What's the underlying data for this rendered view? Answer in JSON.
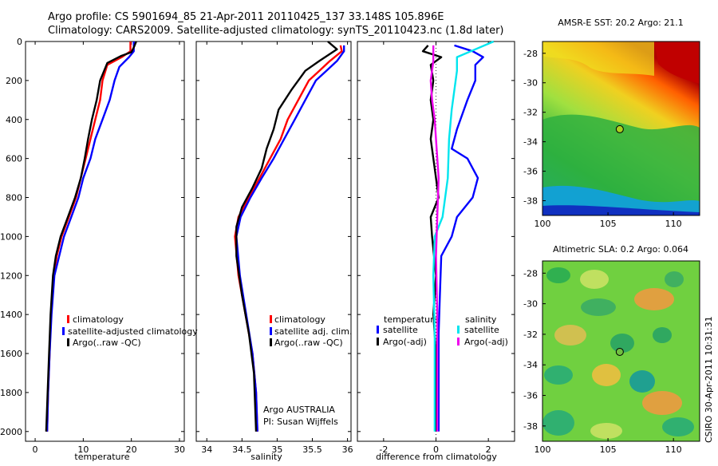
{
  "header": {
    "line1": "Argo profile: CS 5901694_85 21-Apr-2011 20110425_137 33.148S 105.896E",
    "line2": "Climatology: CARS2009. Satellite-adjusted climatology: synTS_20110423.nc (1.8d later)"
  },
  "colors": {
    "climatology": "#ff0000",
    "satellite": "#0000ff",
    "argo": "#000000",
    "sal_satellite": "#00e5ee",
    "sal_argo": "#ee00ee"
  },
  "chart_data": [
    {
      "type": "line",
      "id": "temperature",
      "xlabel": "temperature",
      "ylabel": "",
      "xlim": [
        -2,
        31
      ],
      "ylim": [
        2050,
        0
      ],
      "xticks": [
        0,
        10,
        20,
        30
      ],
      "yticks": [
        0,
        200,
        400,
        600,
        800,
        1000,
        1200,
        1400,
        1600,
        1800,
        2000
      ],
      "legend": {
        "placement": "lower-right",
        "entries": [
          "climatology",
          "satellite-adjusted climatology",
          "Argo(..raw -QC)"
        ]
      },
      "series": [
        {
          "name": "climatology",
          "color": "#ff0000",
          "points": [
            [
              19.8,
              0
            ],
            [
              19.8,
              50
            ],
            [
              18,
              80
            ],
            [
              15,
              120
            ],
            [
              14,
              200
            ],
            [
              13.5,
              300
            ],
            [
              12.5,
              400
            ],
            [
              11.5,
              500
            ],
            [
              10.5,
              600
            ],
            [
              9.5,
              700
            ],
            [
              8.5,
              800
            ],
            [
              7,
              900
            ],
            [
              5.5,
              1000
            ],
            [
              4.5,
              1100
            ],
            [
              3.8,
              1200
            ],
            [
              3.3,
              1400
            ],
            [
              3,
              1600
            ],
            [
              2.7,
              1800
            ],
            [
              2.5,
              2000
            ]
          ]
        },
        {
          "name": "satellite-adjusted climatology",
          "color": "#0000ff",
          "points": [
            [
              20.5,
              0
            ],
            [
              20.5,
              50
            ],
            [
              19.5,
              80
            ],
            [
              17.5,
              130
            ],
            [
              16.5,
              200
            ],
            [
              15.5,
              300
            ],
            [
              14,
              400
            ],
            [
              12.5,
              500
            ],
            [
              11.5,
              600
            ],
            [
              10,
              700
            ],
            [
              9,
              800
            ],
            [
              7.5,
              900
            ],
            [
              6,
              1000
            ],
            [
              5,
              1100
            ],
            [
              4,
              1200
            ],
            [
              3.4,
              1400
            ],
            [
              3,
              1600
            ],
            [
              2.7,
              1800
            ],
            [
              2.5,
              2000
            ]
          ]
        },
        {
          "name": "Argo(..raw -QC)",
          "color": "#000000",
          "points": [
            [
              21,
              0
            ],
            [
              20.6,
              25
            ],
            [
              20,
              55
            ],
            [
              17.8,
              75
            ],
            [
              15,
              110
            ],
            [
              13.5,
              200
            ],
            [
              12.8,
              300
            ],
            [
              11.8,
              400
            ],
            [
              11,
              500
            ],
            [
              10.3,
              600
            ],
            [
              9.5,
              700
            ],
            [
              8.3,
              800
            ],
            [
              6.8,
              900
            ],
            [
              5.3,
              1000
            ],
            [
              4.3,
              1100
            ],
            [
              3.7,
              1200
            ],
            [
              3.2,
              1400
            ],
            [
              2.9,
              1600
            ],
            [
              2.6,
              1800
            ],
            [
              2.3,
              2000
            ]
          ]
        }
      ]
    },
    {
      "type": "line",
      "id": "salinity",
      "xlabel": "salinity",
      "xlim": [
        33.85,
        36.05
      ],
      "ylim": [
        2050,
        0
      ],
      "xticks": [
        34,
        34.5,
        35,
        35.5,
        36
      ],
      "xticklabels": [
        "34",
        "34.5",
        "35",
        "35.5",
        "36"
      ],
      "legend": {
        "placement": "lower-right",
        "entries": [
          "climatology",
          "satellite adj. clim.",
          "Argo(..raw -QC)"
        ]
      },
      "annotations": [
        "Argo AUSTRALIA",
        "PI: Susan Wijffels"
      ],
      "series": [
        {
          "name": "climatology",
          "color": "#ff0000",
          "points": [
            [
              35.9,
              20
            ],
            [
              35.92,
              50
            ],
            [
              35.75,
              100
            ],
            [
              35.6,
              150
            ],
            [
              35.45,
              200
            ],
            [
              35.3,
              300
            ],
            [
              35.15,
              400
            ],
            [
              35.05,
              500
            ],
            [
              34.9,
              600
            ],
            [
              34.75,
              700
            ],
            [
              34.6,
              800
            ],
            [
              34.45,
              900
            ],
            [
              34.4,
              1000
            ],
            [
              34.45,
              1200
            ],
            [
              34.55,
              1400
            ],
            [
              34.65,
              1600
            ],
            [
              34.7,
              1800
            ],
            [
              34.72,
              2000
            ]
          ]
        },
        {
          "name": "satellite adj. clim.",
          "color": "#0000ff",
          "points": [
            [
              35.95,
              20
            ],
            [
              35.95,
              50
            ],
            [
              35.85,
              100
            ],
            [
              35.7,
              150
            ],
            [
              35.55,
              200
            ],
            [
              35.4,
              300
            ],
            [
              35.25,
              400
            ],
            [
              35.1,
              500
            ],
            [
              34.95,
              600
            ],
            [
              34.78,
              700
            ],
            [
              34.62,
              800
            ],
            [
              34.48,
              900
            ],
            [
              34.42,
              1000
            ],
            [
              34.47,
              1200
            ],
            [
              34.56,
              1400
            ],
            [
              34.65,
              1600
            ],
            [
              34.7,
              1800
            ],
            [
              34.72,
              2000
            ]
          ]
        },
        {
          "name": "Argo(..raw -QC)",
          "color": "#000000",
          "points": [
            [
              35.72,
              0
            ],
            [
              35.85,
              40
            ],
            [
              35.6,
              100
            ],
            [
              35.4,
              150
            ],
            [
              35.2,
              250
            ],
            [
              35.02,
              350
            ],
            [
              34.95,
              450
            ],
            [
              34.85,
              550
            ],
            [
              34.78,
              650
            ],
            [
              34.65,
              750
            ],
            [
              34.5,
              850
            ],
            [
              34.42,
              950
            ],
            [
              34.42,
              1100
            ],
            [
              34.5,
              1300
            ],
            [
              34.6,
              1500
            ],
            [
              34.67,
              1700
            ],
            [
              34.7,
              2000
            ]
          ]
        }
      ]
    },
    {
      "type": "line",
      "id": "difference",
      "xlabel": "difference from climatology",
      "xlim": [
        -3,
        3
      ],
      "ylim": [
        2050,
        0
      ],
      "xticks": [
        -2,
        0,
        2
      ],
      "legend": {
        "placement": "lower-right",
        "groups": [
          {
            "title": "temperature",
            "entries": [
              "satellite",
              "Argo(-adj)"
            ]
          },
          {
            "title": "salinity",
            "entries": [
              "satellite",
              "Argo(-adj)"
            ]
          }
        ]
      },
      "series": [
        {
          "name": "temperature satellite",
          "color": "#0000ff",
          "points": [
            [
              0.7,
              20
            ],
            [
              1.4,
              50
            ],
            [
              1.8,
              80
            ],
            [
              1.5,
              120
            ],
            [
              1.5,
              200
            ],
            [
              1.2,
              300
            ],
            [
              0.8,
              450
            ],
            [
              0.6,
              550
            ],
            [
              1.2,
              600
            ],
            [
              1.6,
              700
            ],
            [
              1.4,
              800
            ],
            [
              0.8,
              900
            ],
            [
              0.6,
              1000
            ],
            [
              0.2,
              1100
            ],
            [
              0.15,
              1300
            ],
            [
              0.1,
              1500
            ],
            [
              0.1,
              2000
            ]
          ]
        },
        {
          "name": "temperature Argo(-adj)",
          "color": "#000000",
          "points": [
            [
              -0.3,
              20
            ],
            [
              -0.5,
              50
            ],
            [
              0.2,
              80
            ],
            [
              -0.2,
              120
            ],
            [
              -0.1,
              200
            ],
            [
              -0.2,
              300
            ],
            [
              -0.1,
              400
            ],
            [
              -0.2,
              500
            ],
            [
              -0.1,
              600
            ],
            [
              0.1,
              800
            ],
            [
              -0.2,
              900
            ],
            [
              -0.15,
              1000
            ],
            [
              0,
              1200
            ],
            [
              -0.1,
              1400
            ],
            [
              0,
              1600
            ],
            [
              0,
              2000
            ]
          ]
        },
        {
          "name": "salinity satellite",
          "color": "#00e5ee",
          "points": [
            [
              2.2,
              0
            ],
            [
              1.5,
              40
            ],
            [
              0.8,
              80
            ],
            [
              0.8,
              150
            ],
            [
              0.7,
              250
            ],
            [
              0.6,
              350
            ],
            [
              0.5,
              500
            ],
            [
              0.45,
              700
            ],
            [
              0.25,
              900
            ],
            [
              -0.05,
              1000
            ],
            [
              -0.1,
              1200
            ],
            [
              -0.05,
              1500
            ],
            [
              -0.05,
              2000
            ]
          ]
        },
        {
          "name": "salinity Argo(-adj)",
          "color": "#ee00ee",
          "points": [
            [
              -0.1,
              20
            ],
            [
              -0.1,
              100
            ],
            [
              -0.2,
              200
            ],
            [
              -0.15,
              300
            ],
            [
              -0.05,
              400
            ],
            [
              0,
              500
            ],
            [
              0.1,
              700
            ],
            [
              0.05,
              900
            ],
            [
              0,
              1100
            ],
            [
              0.05,
              1400
            ],
            [
              0.05,
              2000
            ]
          ]
        }
      ]
    }
  ],
  "maps": [
    {
      "title": "AMSR-E SST: 20.2  Argo: 21.1",
      "yticks": [
        "-28",
        "-30",
        "-32",
        "-34",
        "-36",
        "-38"
      ],
      "xticks": [
        "100",
        "105",
        "110"
      ],
      "profile_lon": 105.9,
      "profile_lat": -33.15
    },
    {
      "title": "Altimetric SLA: 0.2  Argo: 0.064",
      "yticks": [
        "-28",
        "-30",
        "-32",
        "-34",
        "-36",
        "-38"
      ],
      "xticks": [
        "100",
        "105",
        "110"
      ],
      "profile_lon": 105.9,
      "profile_lat": -33.15
    }
  ],
  "footer": {
    "stamp": "CSIRO 30-Apr-2011 10:31:31"
  }
}
